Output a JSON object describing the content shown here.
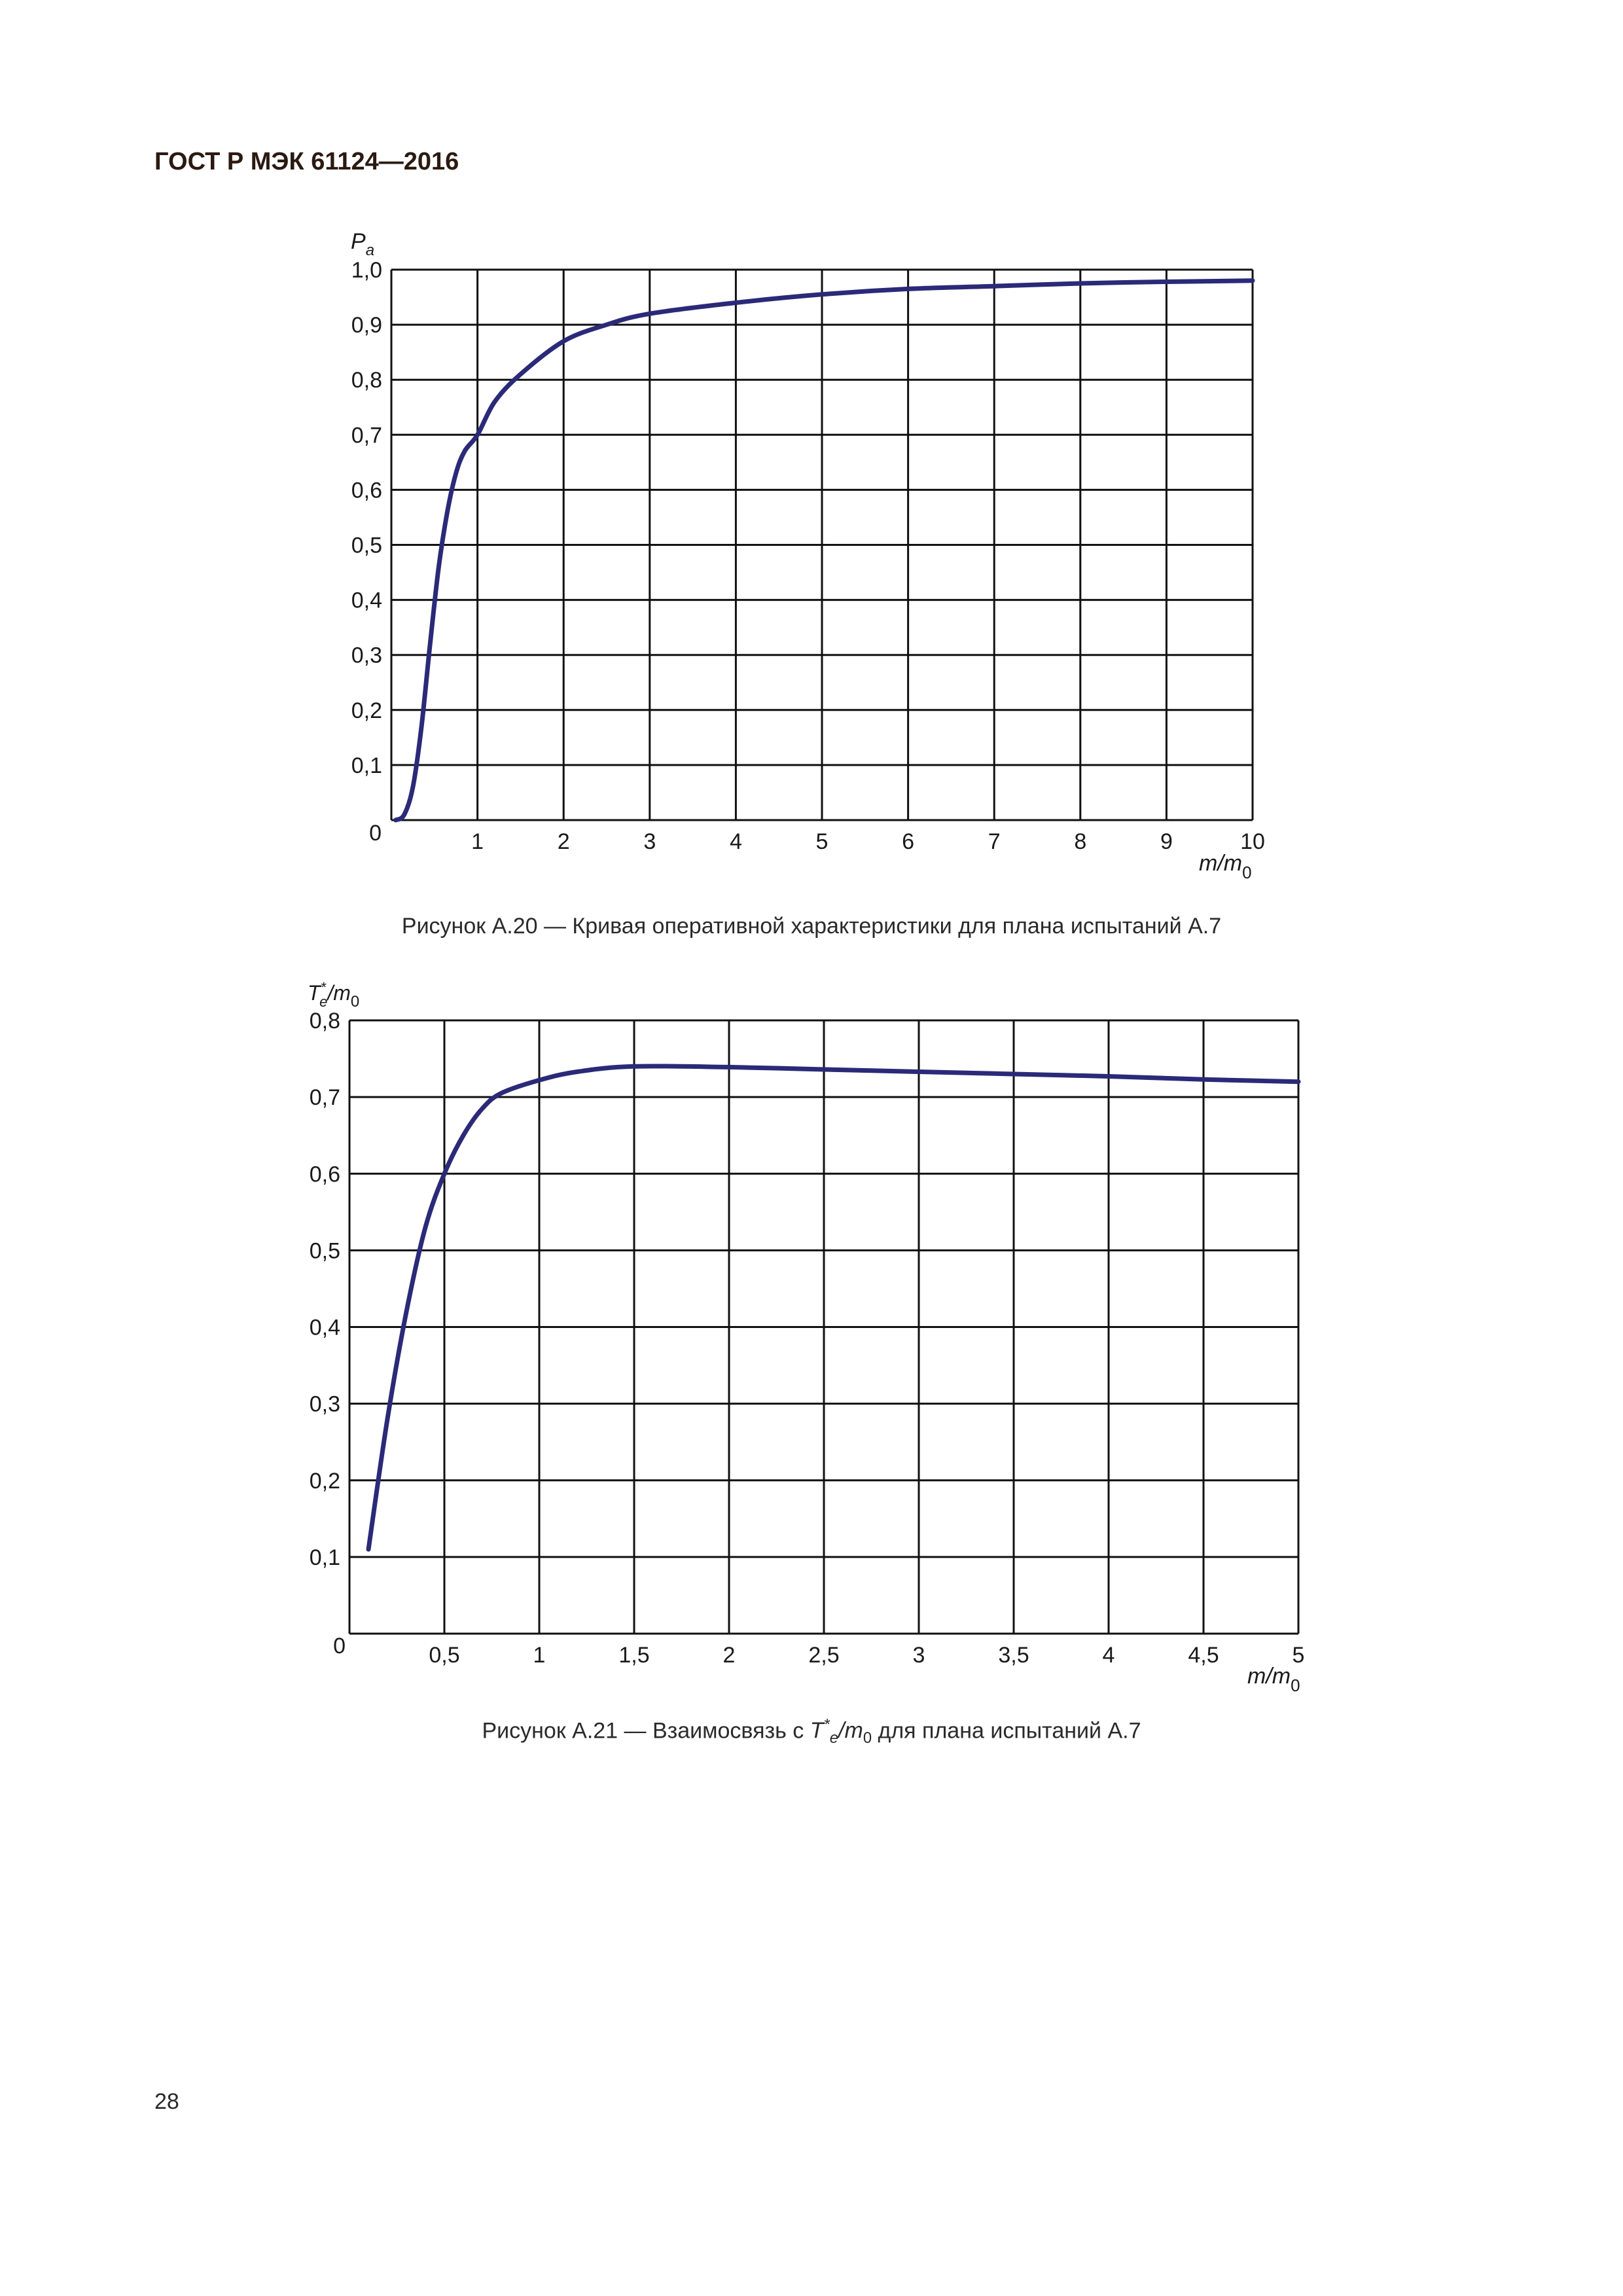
{
  "header": {
    "title": "ГОСТ Р МЭК 61124—2016"
  },
  "page_number": "28",
  "figures": [
    {
      "caption": "Рисунок А.20 — Кривая оперативной характеристики для плана испытаний А.7"
    },
    {
      "caption_prefix": "Рисунок А.21 — Взаимосвязь с ",
      "caption_symbol": "T",
      "caption_sup": "*",
      "caption_sub_e": "e",
      "caption_mid": "/m",
      "caption_sub_0": "0",
      "caption_suffix": " для плана испытаний А.7"
    }
  ],
  "chart_data": [
    {
      "type": "line",
      "ylabel": "Pa",
      "ylabel_main": "P",
      "ylabel_sub": "a",
      "xlabel_main": "m/m",
      "xlabel_sub": "0",
      "xlim": [
        0,
        10
      ],
      "ylim": [
        0,
        1.0
      ],
      "grid": true,
      "x_ticks": [
        "1",
        "2",
        "3",
        "4",
        "5",
        "6",
        "7",
        "8",
        "9",
        "10"
      ],
      "y_ticks": [
        "0,1",
        "0,2",
        "0,3",
        "0,4",
        "0,5",
        "0,6",
        "0,7",
        "0,8",
        "0,9",
        "1,0"
      ],
      "origin_label": "0",
      "line_color": "#2b2a78",
      "series": [
        {
          "x": [
            0.05,
            0.15,
            0.25,
            0.35,
            0.45,
            0.55,
            0.65,
            0.75,
            0.85,
            1.0,
            1.2,
            1.5,
            2.0,
            2.5,
            3.0,
            4.0,
            5.0,
            6.0,
            7.0,
            8.0,
            9.0,
            10.0
          ],
          "y": [
            0.0,
            0.01,
            0.06,
            0.17,
            0.32,
            0.46,
            0.56,
            0.63,
            0.67,
            0.7,
            0.76,
            0.81,
            0.87,
            0.9,
            0.92,
            0.94,
            0.955,
            0.965,
            0.97,
            0.975,
            0.978,
            0.98
          ]
        }
      ]
    },
    {
      "type": "line",
      "ylabel_T": "T",
      "ylabel_sup": "*",
      "ylabel_sub_e": "e",
      "ylabel_mid": "/m",
      "ylabel_sub_0": "0",
      "xlabel_main": "m/m",
      "xlabel_sub": "0",
      "xlim": [
        0,
        5
      ],
      "ylim": [
        0,
        0.8
      ],
      "grid": true,
      "x_ticks": [
        "0,5",
        "1",
        "1,5",
        "2",
        "2,5",
        "3",
        "3,5",
        "4",
        "4,5",
        "5"
      ],
      "y_ticks": [
        "0,1",
        "0,2",
        "0,3",
        "0,4",
        "0,5",
        "0,6",
        "0,7",
        "0,8"
      ],
      "origin_label": "0",
      "line_color": "#2b2a78",
      "series": [
        {
          "x": [
            0.1,
            0.2,
            0.3,
            0.4,
            0.5,
            0.6,
            0.7,
            0.8,
            1.0,
            1.2,
            1.5,
            2.0,
            2.5,
            3.0,
            3.5,
            4.0,
            4.5,
            5.0
          ],
          "y": [
            0.11,
            0.28,
            0.42,
            0.53,
            0.6,
            0.65,
            0.685,
            0.705,
            0.722,
            0.733,
            0.74,
            0.739,
            0.736,
            0.733,
            0.73,
            0.727,
            0.723,
            0.72
          ]
        }
      ]
    }
  ]
}
